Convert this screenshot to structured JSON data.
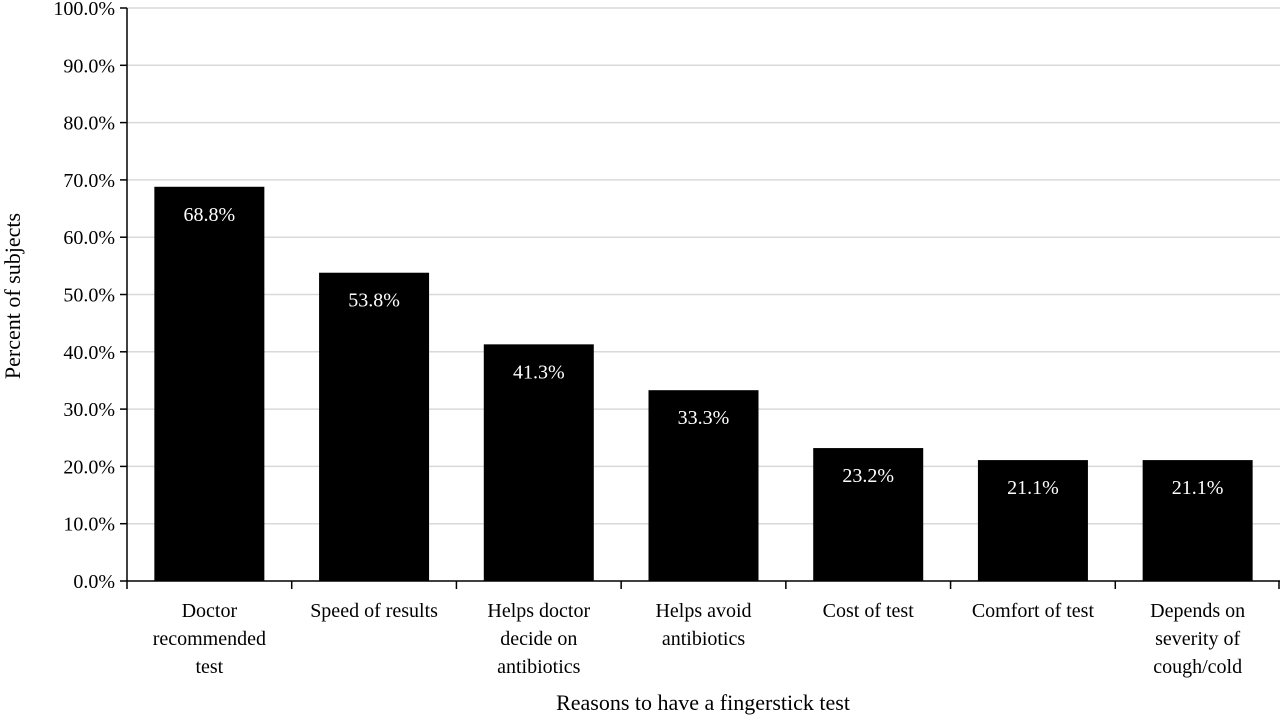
{
  "chart_data": {
    "type": "bar",
    "categories": [
      "Doctor recommended test",
      "Speed of results",
      "Helps doctor decide on antibiotics",
      "Helps avoid antibiotics",
      "Cost of test",
      "Comfort of test",
      "Depends on severity of cough/cold"
    ],
    "category_lines": [
      [
        "Doctor",
        "recommended",
        "test"
      ],
      [
        "Speed of results"
      ],
      [
        "Helps doctor",
        "decide on",
        "antibiotics"
      ],
      [
        "Helps avoid",
        "antibiotics"
      ],
      [
        "Cost of test"
      ],
      [
        "Comfort of test"
      ],
      [
        "Depends on",
        "severity of",
        "cough/cold"
      ]
    ],
    "values": [
      68.8,
      53.8,
      41.3,
      33.3,
      23.2,
      21.1,
      21.1
    ],
    "data_labels": [
      "68.8%",
      "53.8%",
      "41.3%",
      "33.3%",
      "23.2%",
      "21.1%",
      "21.1%"
    ],
    "yticks": [
      0,
      10,
      20,
      30,
      40,
      50,
      60,
      70,
      80,
      90,
      100
    ],
    "ytick_labels": [
      "0.0%",
      "10.0%",
      "20.0%",
      "30.0%",
      "40.0%",
      "50.0%",
      "60.0%",
      "70.0%",
      "80.0%",
      "90.0%",
      "100.0%"
    ],
    "ylim": [
      0,
      100
    ],
    "xlabel": "Reasons to have a fingerstick test",
    "ylabel": "Percent of subjects",
    "grid": true,
    "bar_color": "#000000",
    "grid_color": "#d9d9d9",
    "label_color": "#ffffff"
  }
}
